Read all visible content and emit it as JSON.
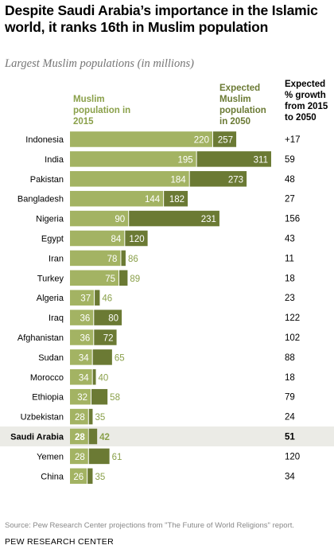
{
  "title": "Despite Saudi Arabia’s importance in the Islamic world, it ranks 16th in Muslim population",
  "subtitle": "Largest Muslim populations (in millions)",
  "legend": {
    "label_2015": "Muslim population in 2015",
    "label_2050": "Expected Muslim population in 2050"
  },
  "growth_header": "Expected % growth from 2015 to 2050",
  "source": "Source: Pew Research Center projections from \"The Future of World Religions\" report.",
  "org": "PEW RESEARCH CENTER",
  "colors": {
    "c2015": "#a3b363",
    "c2050": "#6b7a34",
    "highlight_bg": "#ebebe6",
    "label_outside": "#8aa04a"
  },
  "chart_data": {
    "type": "bar",
    "orientation": "horizontal",
    "categories": [
      "Indonesia",
      "India",
      "Pakistan",
      "Bangladesh",
      "Nigeria",
      "Egypt",
      "Iran",
      "Turkey",
      "Algeria",
      "Iraq",
      "Afghanistan",
      "Sudan",
      "Morocco",
      "Ethiopia",
      "Uzbekistan",
      "Saudi Arabia",
      "Yemen",
      "China"
    ],
    "series": [
      {
        "name": "Muslim population in 2015",
        "values": [
          220,
          195,
          184,
          144,
          90,
          84,
          78,
          75,
          37,
          36,
          36,
          34,
          34,
          32,
          28,
          28,
          28,
          26
        ]
      },
      {
        "name": "Expected Muslim population in 2050",
        "values": [
          257,
          311,
          273,
          182,
          231,
          120,
          86,
          89,
          46,
          80,
          72,
          65,
          40,
          58,
          35,
          42,
          61,
          35
        ]
      }
    ],
    "growth_labels": [
      "+17",
      "59",
      "48",
      "27",
      "156",
      "43",
      "11",
      "18",
      "23",
      "122",
      "102",
      "88",
      "18",
      "79",
      "24",
      "51",
      "120",
      "34"
    ],
    "highlight": "Saudi Arabia",
    "xlim": [
      0,
      311
    ]
  }
}
